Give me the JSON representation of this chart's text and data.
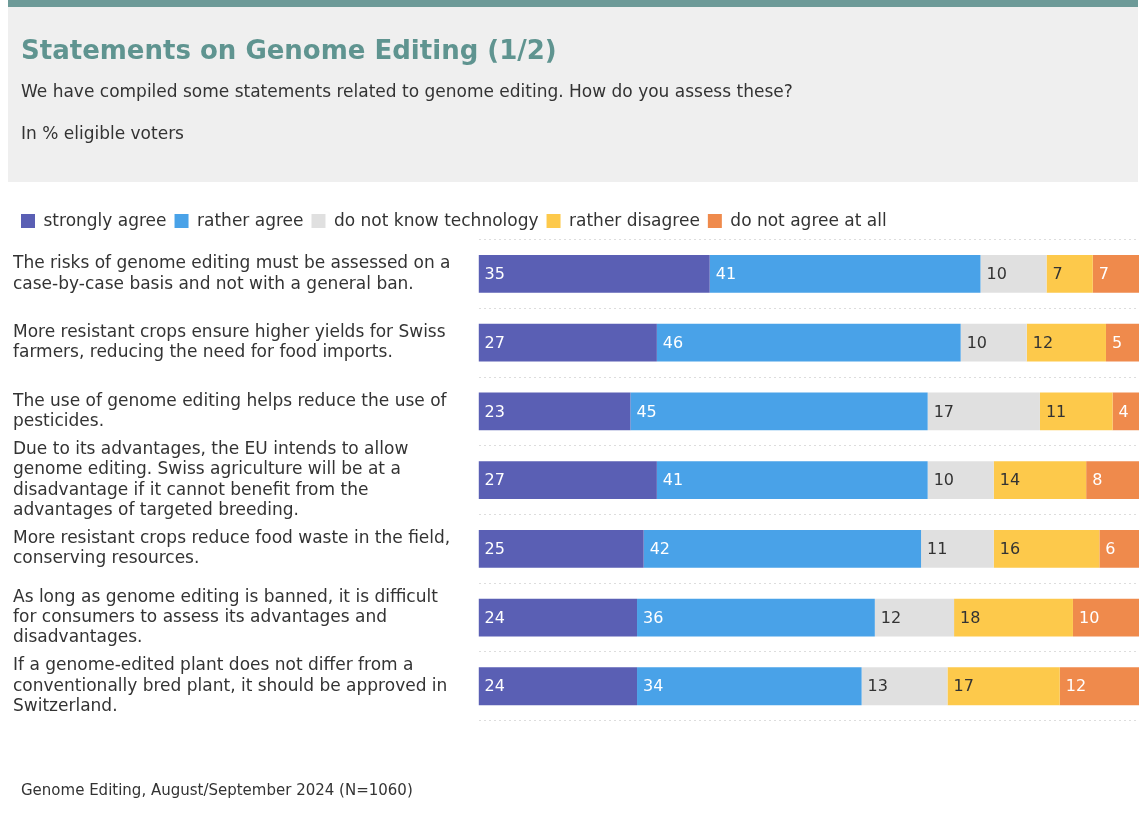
{
  "chart_data": {
    "type": "bar",
    "orientation": "horizontal",
    "stacked": true,
    "title": "Statements on Genome Editing (1/2)",
    "subtitle": "We have compiled some statements related to genome editing. How do you assess these?",
    "annotations": [
      "In % eligible voters",
      "Genome Editing, August/September 2024 (N=1060)"
    ],
    "categories": [
      "The risks of genome editing must be assessed on a case-by-case basis and not with a general ban.",
      "More resistant crops ensure higher yields for Swiss farmers, reducing the need for food imports.",
      "The use of genome editing helps reduce the use of pesticides.",
      "Due to its advantages, the EU intends to allow genome editing. Swiss agriculture will be at a disadvantage if it cannot benefit from the advantages of targeted breeding.",
      "More resistant crops reduce food waste in the field, conserving resources.",
      "As long as genome editing is banned, it is difficult for consumers to assess its advantages and disadvantages.",
      "If a genome-edited plant does not differ from a conventionally bred plant, it should be approved in Switzerland."
    ],
    "series": [
      {
        "name": "strongly agree",
        "color": "#5a5fb4",
        "values": [
          35,
          27,
          23,
          27,
          25,
          24,
          24
        ]
      },
      {
        "name": "rather agree",
        "color": "#49a2e8",
        "values": [
          41,
          46,
          45,
          41,
          42,
          36,
          34
        ]
      },
      {
        "name": "do not know technology",
        "color": "#e0e0e0",
        "values": [
          10,
          10,
          17,
          10,
          11,
          12,
          13
        ]
      },
      {
        "name": "rather disagree",
        "color": "#fdc94b",
        "values": [
          7,
          12,
          11,
          14,
          16,
          18,
          17
        ]
      },
      {
        "name": "do not agree at all",
        "color": "#ef8a4c",
        "values": [
          7,
          5,
          4,
          8,
          6,
          10,
          12
        ]
      }
    ],
    "xlim": [
      0,
      100
    ],
    "data_labels": true,
    "legend": "top left",
    "grid": "y",
    "tick_labels": "y"
  }
}
